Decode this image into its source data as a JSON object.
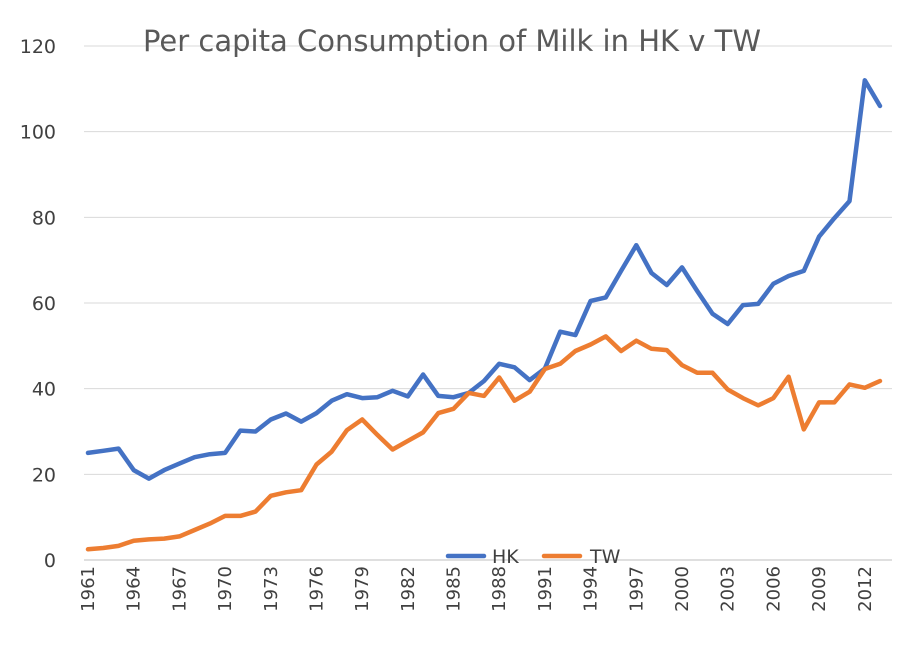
{
  "chart_data": {
    "type": "line",
    "title": "Per capita Consumption of Milk in HK v TW",
    "x": [
      1961,
      1962,
      1963,
      1964,
      1965,
      1966,
      1967,
      1968,
      1969,
      1970,
      1971,
      1972,
      1973,
      1974,
      1975,
      1976,
      1977,
      1978,
      1979,
      1980,
      1981,
      1982,
      1983,
      1984,
      1985,
      1986,
      1987,
      1988,
      1989,
      1990,
      1991,
      1992,
      1993,
      1994,
      1995,
      1996,
      1997,
      1998,
      1999,
      2000,
      2001,
      2002,
      2003,
      2004,
      2005,
      2006,
      2007,
      2008,
      2009,
      2010,
      2011,
      2012,
      2013
    ],
    "x_tick_labels": [
      "1961",
      "1964",
      "1967",
      "1970",
      "1973",
      "1976",
      "1979",
      "1982",
      "1985",
      "1988",
      "1991",
      "1994",
      "1997",
      "2000",
      "2003",
      "2006",
      "2009",
      "2012"
    ],
    "ylim": [
      0,
      120
    ],
    "y_ticks": [
      0,
      20,
      40,
      60,
      80,
      100,
      120
    ],
    "grid": true,
    "legend_position": "bottom-center",
    "series": [
      {
        "name": "HK",
        "color": "#4472C4",
        "values": [
          25,
          25.5,
          26,
          21,
          19,
          21,
          22.5,
          24,
          24.7,
          25,
          30.2,
          30,
          32.8,
          34.2,
          32.3,
          34.3,
          37.2,
          38.7,
          37.8,
          38,
          39.5,
          38.2,
          43.3,
          38.3,
          38,
          39,
          41.8,
          45.8,
          45,
          42,
          44.7,
          53.3,
          52.5,
          60.5,
          61.3,
          67.5,
          73.5,
          67,
          64.2,
          68.3,
          62.8,
          57.5,
          55.1,
          59.5,
          59.8,
          64.5,
          66.3,
          67.5,
          75.5,
          79.8,
          83.8,
          112,
          106
        ]
      },
      {
        "name": "TW",
        "color": "#ED7D31",
        "values": [
          2.5,
          2.8,
          3.3,
          4.5,
          4.8,
          5,
          5.5,
          7,
          8.5,
          10.3,
          10.3,
          11.3,
          15,
          15.8,
          16.3,
          22.3,
          25.3,
          30.3,
          32.8,
          29.2,
          25.8,
          27.8,
          29.8,
          34.3,
          35.3,
          39,
          38.3,
          42.6,
          37.2,
          39.3,
          44.6,
          45.8,
          48.8,
          50.3,
          52.2,
          48.8,
          51.2,
          49.3,
          49,
          45.5,
          43.7,
          43.7,
          39.8,
          37.8,
          36.1,
          37.8,
          42.8,
          30.5,
          36.8,
          36.8,
          41,
          40.2,
          41.8
        ]
      }
    ]
  }
}
